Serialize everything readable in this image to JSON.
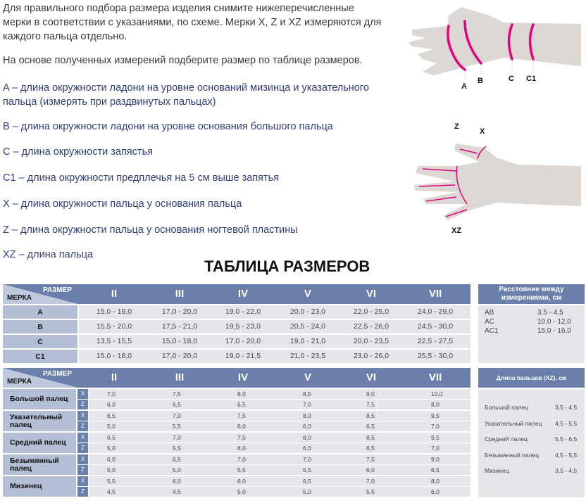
{
  "intro": {
    "p1": "Для правильного подбора размера изделия снимите нижеперечисленные мерки в соответствии с указаниями, по схеме. Мерки X, Z и XZ измеряются для каждого пальца отдельно.",
    "p2": "На основе полученных измерений подберите размер по таблице размеров."
  },
  "definitions": [
    "A – длина окружности ладони на уровне оснований мизинца и указательного пальца (измерять при раздвинутых пальцах)",
    "B – длина окружности ладони на уровне основания большого пальца",
    "C – длина окружности запястья",
    "C1 – длина окружности предплечья на 5 см выше запятья",
    "X – длина окружности пальца у основания пальца",
    "Z – длина окружности пальца у основания ногтевой пластины",
    "XZ – длина пальца"
  ],
  "diagram1": {
    "labels": [
      "A",
      "B",
      "C",
      "C1"
    ]
  },
  "diagram2": {
    "labels": [
      "Z",
      "X",
      "XZ"
    ]
  },
  "colors": {
    "header": "#6a7faa",
    "label_bg": "#b4bfd6",
    "cell_bg": "#e4e6ea",
    "accent": "#e6007e",
    "text_blue": "#2f3f7a"
  },
  "title": "ТАБЛИЦА РАЗМЕРОВ",
  "table1": {
    "corner_size": "РАЗМЕР",
    "corner_measure": "МЕРКА",
    "sizes": [
      "II",
      "III",
      "IV",
      "V",
      "VI",
      "VII"
    ],
    "rows": [
      {
        "label": "A",
        "values": [
          "15,0 - 19,0",
          "17,0 - 20,0",
          "19,0 - 22,0",
          "20,0 - 23,0",
          "22,0 - 25,0",
          "24,0 - 29,0"
        ]
      },
      {
        "label": "B",
        "values": [
          "15,5 - 20,0",
          "17,5 - 21,0",
          "19,5 - 23,0",
          "20,5 - 24,0",
          "22,5 - 26,0",
          "24,5 - 30,0"
        ]
      },
      {
        "label": "C",
        "values": [
          "13,5 - 15,5",
          "15,0 - 18,0",
          "17,0 - 20,0",
          "19,0 - 21,0",
          "20,0 - 23,5",
          "22,5 - 27,5"
        ]
      },
      {
        "label": "C1",
        "values": [
          "15,0 - 18,0",
          "17,0 - 20,0",
          "19,0 - 21,5",
          "21,0 - 23,5",
          "23,0 - 26,0",
          "25,5 - 30,0"
        ]
      }
    ],
    "side": {
      "title": "Расстояние между измерениями, см",
      "rows": [
        {
          "k": "AB",
          "v": "3,5 - 4,5"
        },
        {
          "k": "AC",
          "v": "10,0 - 12,0"
        },
        {
          "k": "AC1",
          "v": "15,0 - 16,0"
        }
      ]
    }
  },
  "table2": {
    "corner_size": "РАЗМЕР",
    "corner_measure": "МЕРКА",
    "sizes": [
      "II",
      "III",
      "IV",
      "V",
      "VI",
      "VII"
    ],
    "rows": [
      {
        "label": "Большой палец",
        "x": [
          "7,0",
          "7,5",
          "8,0",
          "8,5",
          "9,0",
          "10,0"
        ],
        "z": [
          "6,0",
          "6,5",
          "6,5",
          "7,0",
          "7,5",
          "8,0"
        ]
      },
      {
        "label": "Указательный палец",
        "x": [
          "6,5",
          "7,0",
          "7,5",
          "8,0",
          "8,5",
          "9,5"
        ],
        "z": [
          "5,0",
          "5,5",
          "6,0",
          "6,0",
          "6,5",
          "7,0"
        ]
      },
      {
        "label": "Средний палец",
        "x": [
          "6,5",
          "7,0",
          "7,5",
          "8,0",
          "8,5",
          "9,5"
        ],
        "z": [
          "5,0",
          "5,5",
          "6,0",
          "6,0",
          "6,5",
          "7,0"
        ]
      },
      {
        "label": "Безымянный палец",
        "x": [
          "6,0",
          "6,5",
          "7,0",
          "7,0",
          "7,5",
          "9,0"
        ],
        "z": [
          "5,0",
          "5,0",
          "5,5",
          "5,5",
          "6,0",
          "6,5"
        ]
      },
      {
        "label": "Мизинец",
        "x": [
          "5,5",
          "6,0",
          "6,0",
          "6,5",
          "7,0",
          "8,0"
        ],
        "z": [
          "4,5",
          "4,5",
          "5,0",
          "5,0",
          "5,5",
          "6,0"
        ]
      }
    ],
    "xz_labels": [
      "X",
      "Z"
    ],
    "side": {
      "title": "Длина пальцев (XZ), см",
      "rows": [
        {
          "k": "Большой палец",
          "v": "3,5 - 4,5"
        },
        {
          "k": "Указательный палец",
          "v": "4,5 - 5,5"
        },
        {
          "k": "Средний палец",
          "v": "5,5 - 6,5"
        },
        {
          "k": "Безымянный палец",
          "v": "4,5 - 5,5"
        },
        {
          "k": "Мизинец",
          "v": "3,5 - 4,5"
        }
      ]
    }
  }
}
